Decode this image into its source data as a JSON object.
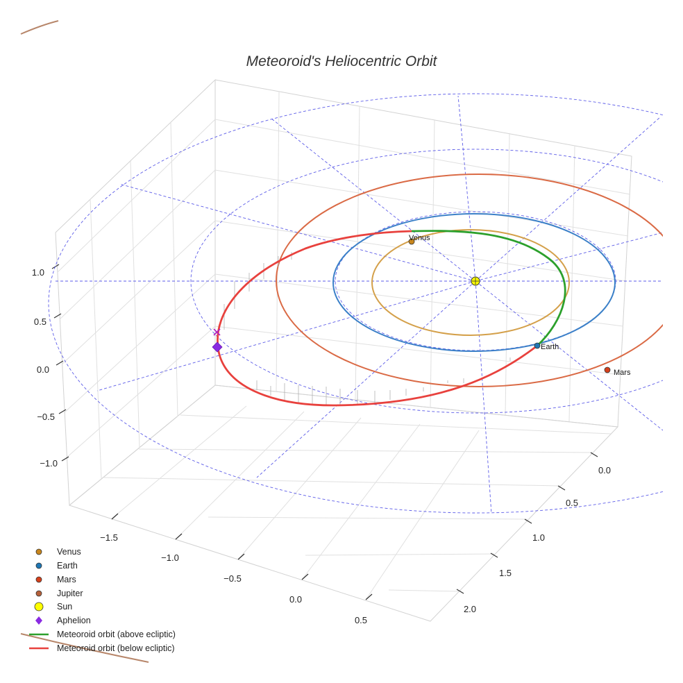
{
  "chart_data": {
    "type": "scatter3d",
    "title": "Meteoroid's Heliocentric Orbit",
    "axes": {
      "x": {
        "ticks": [
          -1.5,
          -1.0,
          -0.5,
          0.0,
          0.5
        ],
        "tick_labels": [
          "−1.5",
          "−1.0",
          "−0.5",
          "0.0",
          "0.5"
        ]
      },
      "y": {
        "ticks": [
          0.0,
          0.5,
          1.0,
          1.5,
          2.0
        ],
        "tick_labels": [
          "0.0",
          "0.5",
          "1.0",
          "1.5",
          "2.0"
        ]
      },
      "z": {
        "ticks": [
          -1.0,
          -0.5,
          0.0,
          0.5,
          1.0
        ],
        "tick_labels": [
          "−1.0",
          "−0.5",
          "0.0",
          "0.5",
          "1.0"
        ]
      }
    },
    "ecliptic_reference_circles_au": [
      1.0,
      1.52,
      2.5
    ],
    "bodies": [
      {
        "name": "Venus",
        "label": "Venus",
        "orbit_radius_au": 0.72,
        "color": "#c8861d",
        "orbit_color": "#d4a04a"
      },
      {
        "name": "Earth",
        "label": "Earth",
        "orbit_radius_au": 1.0,
        "color": "#1f77b4",
        "orbit_color": "#3b80c8"
      },
      {
        "name": "Mars",
        "label": "Mars",
        "orbit_radius_au": 1.52,
        "color": "#d6401b",
        "orbit_color": "#da6a45"
      },
      {
        "name": "Jupiter",
        "label": "",
        "orbit_radius_au": 5.2,
        "color": "#b5603a",
        "orbit_color": "#b7866a"
      }
    ],
    "sun": {
      "name": "Sun",
      "color": "#ffff00"
    },
    "aphelion": {
      "name": "Aphelion",
      "color": "#8a2be2",
      "distance_au": 1.83
    },
    "meteoroid_orbit": {
      "perihelion_au": 0.72,
      "aphelion_au": 1.83,
      "above_color": "#2ca02c",
      "below_color": "#e8413d"
    },
    "legend": [
      {
        "label": "Venus",
        "marker": "circle",
        "color": "#c8861d"
      },
      {
        "label": "Earth",
        "marker": "circle",
        "color": "#1f77b4"
      },
      {
        "label": "Mars",
        "marker": "circle",
        "color": "#d6401b"
      },
      {
        "label": "Jupiter",
        "marker": "circle",
        "color": "#b5603a"
      },
      {
        "label": "Sun",
        "marker": "big-circle",
        "color": "#ffff00"
      },
      {
        "label": "Aphelion",
        "marker": "diamond",
        "color": "#8a2be2"
      },
      {
        "label": "Meteoroid orbit (above ecliptic)",
        "marker": "line",
        "color": "#2ca02c"
      },
      {
        "label": "Meteoroid orbit (below ecliptic)",
        "marker": "line",
        "color": "#e8413d"
      }
    ]
  }
}
